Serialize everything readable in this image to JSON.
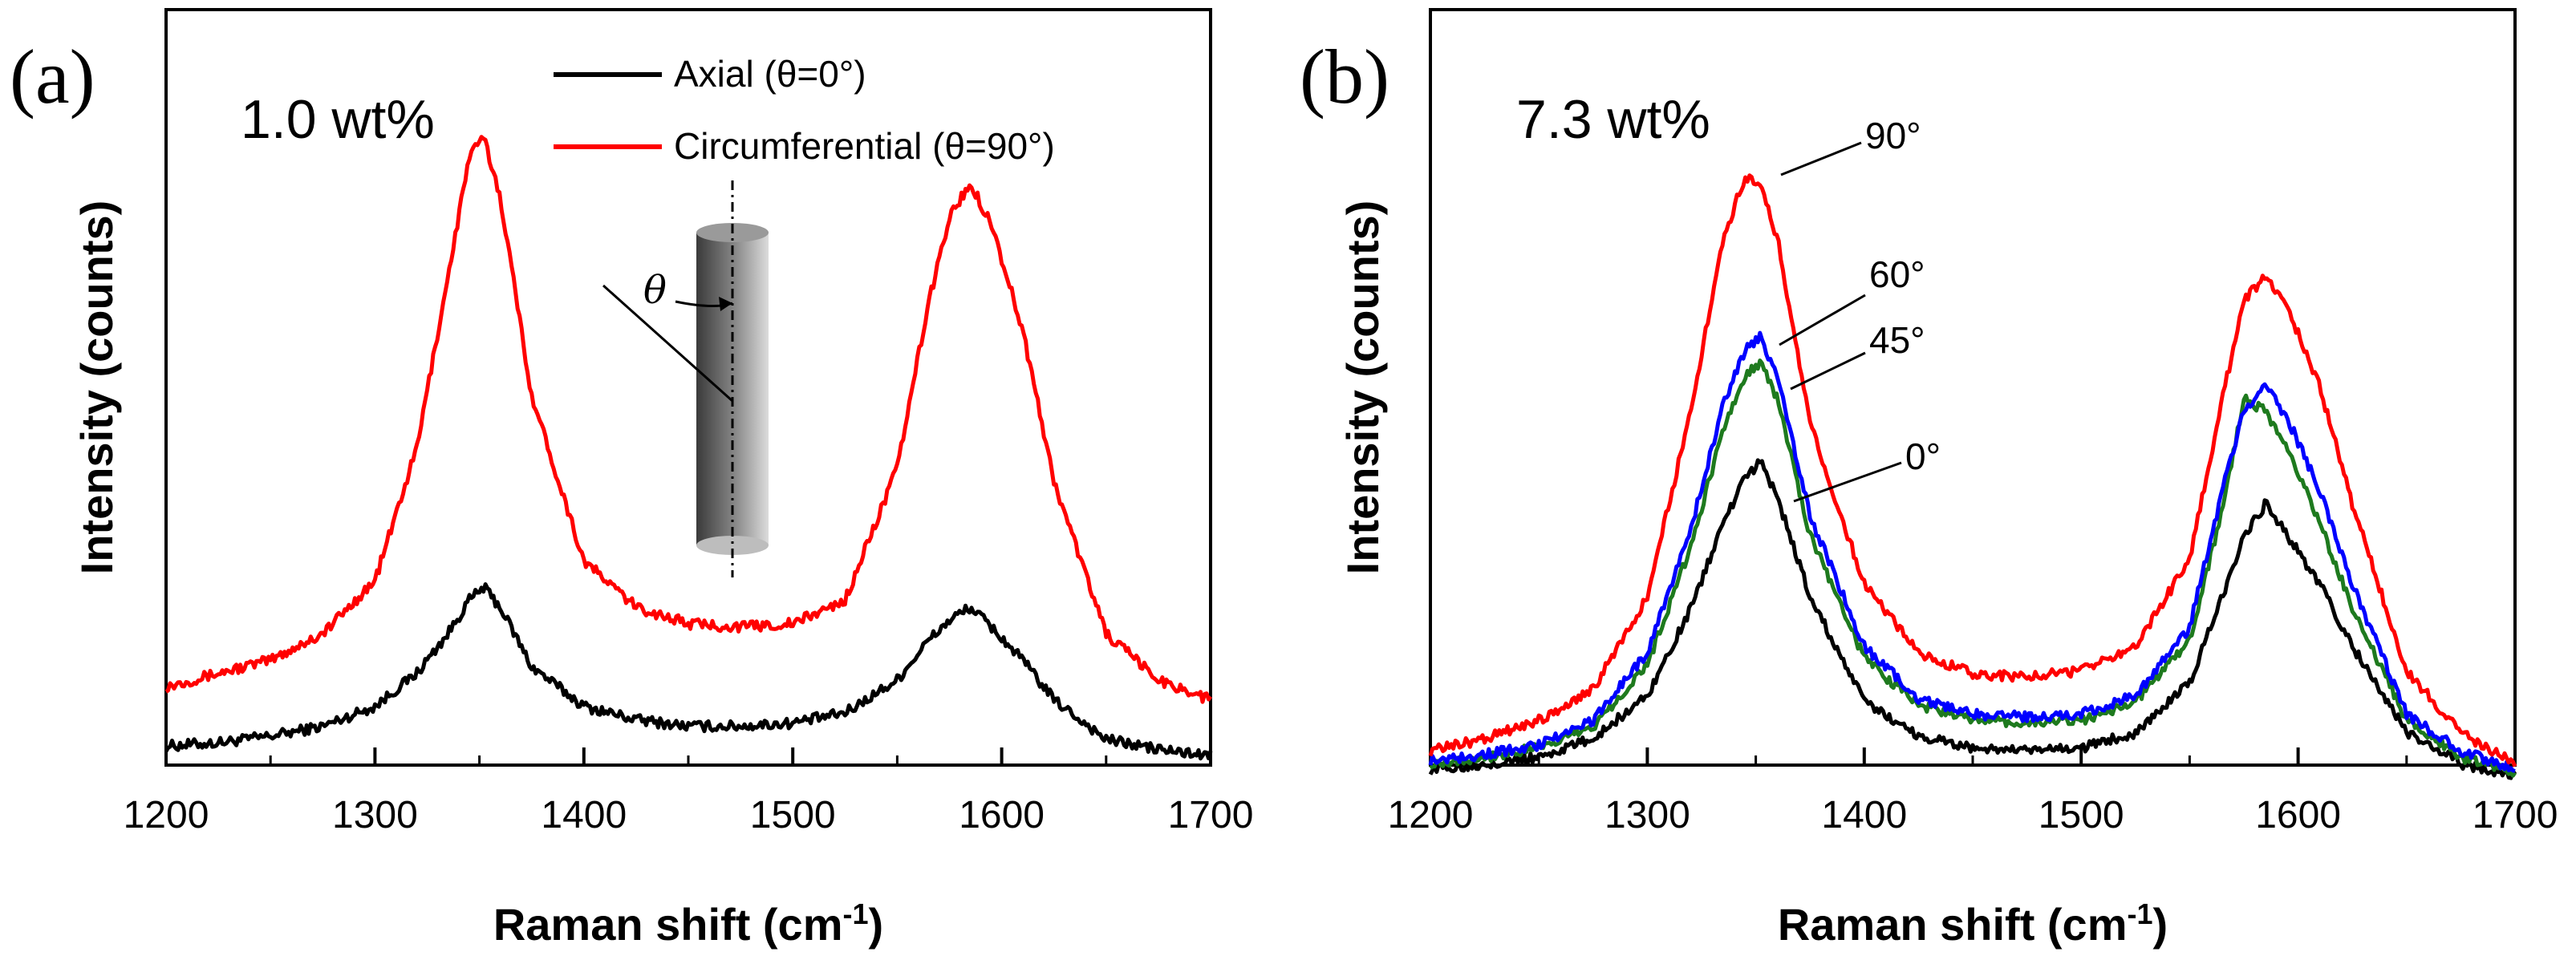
{
  "chart_data": [
    {
      "type": "line",
      "panel_label": "(a)",
      "annotation": "1.0 wt%",
      "xlabel": "Raman shift (cm-1)",
      "xlabel_main": "Raman shift (cm",
      "xlabel_sup": "-1",
      "xlabel_close": ")",
      "ylabel": "Intensity (counts)",
      "xlim": [
        1200,
        1700
      ],
      "ylim": [
        0,
        100
      ],
      "xticks": [
        1200,
        1300,
        1400,
        1500,
        1600,
        1700
      ],
      "legend_position": "top-center",
      "inset_label": "θ",
      "x": [
        1200,
        1225,
        1250,
        1275,
        1300,
        1320,
        1335,
        1345,
        1352,
        1360,
        1375,
        1400,
        1425,
        1450,
        1475,
        1500,
        1525,
        1550,
        1565,
        1575,
        1585,
        1595,
        1610,
        1625,
        1650,
        1675,
        1700
      ],
      "series": [
        {
          "name": "Axial (θ=0°)",
          "legend_main": "Axial (",
          "legend_angle": "0°",
          "color": "#000000",
          "values": [
            3,
            3.5,
            4.5,
            6,
            9,
            14,
            20,
            25,
            27,
            24,
            15,
            9,
            7,
            6,
            6,
            6.5,
            8,
            13,
            19,
            22,
            24,
            21,
            16,
            10,
            4,
            2.5,
            1.5
          ]
        },
        {
          "name": "Circumferential (θ=90°)",
          "legend_main": "Circumferential (",
          "legend_angle": "90°",
          "color": "#ff0000",
          "values": [
            12,
            14,
            16,
            20,
            28,
            48,
            74,
            92,
            95,
            86,
            56,
            31,
            24,
            21.5,
            21,
            21.5,
            25,
            45,
            70,
            83,
            88,
            82,
            66,
            43,
            20,
            13,
            10
          ]
        }
      ]
    },
    {
      "type": "line",
      "panel_label": "(b)",
      "annotation": "7.3 wt%",
      "xlabel": "Raman shift (cm-1)",
      "xlabel_main": "Raman shift (cm",
      "xlabel_sup": "-1",
      "xlabel_close": ")",
      "ylabel": "Intensity (counts)",
      "xlim": [
        1200,
        1700
      ],
      "ylim": [
        0,
        100
      ],
      "xticks": [
        1200,
        1300,
        1400,
        1500,
        1600,
        1700
      ],
      "x": [
        1200,
        1225,
        1250,
        1275,
        1300,
        1320,
        1335,
        1345,
        1352,
        1360,
        1375,
        1400,
        1425,
        1450,
        1475,
        1500,
        1525,
        1550,
        1565,
        1575,
        1585,
        1595,
        1610,
        1625,
        1650,
        1675,
        1700
      ],
      "series": [
        {
          "name": "0°",
          "color": "#000000",
          "values": [
            2,
            3,
            4,
            7,
            14,
            28,
            42,
            49,
            52,
            46,
            30,
            13,
            7.5,
            5.5,
            5,
            5.5,
            8,
            16,
            30,
            40,
            45,
            40,
            32,
            22,
            8,
            3,
            1
          ]
        },
        {
          "name": "45°",
          "color": "#1e7a1e",
          "values": [
            3,
            4,
            5.5,
            9,
            19,
            38,
            57,
            66,
            68,
            62,
            40,
            20,
            12.5,
            10,
            9.5,
            10,
            13,
            23,
            44,
            62,
            60,
            54,
            42,
            28,
            10,
            4,
            1.5
          ]
        },
        {
          "name": "60°",
          "color": "#0000ff",
          "values": [
            3.5,
            4.5,
            6,
            10,
            21,
            41,
            61,
            70,
            72,
            66,
            43,
            22,
            13.5,
            11,
            10.5,
            11,
            14,
            25,
            47,
            60,
            64,
            59,
            47,
            32,
            11,
            5,
            2
          ]
        },
        {
          "name": "90°",
          "color": "#ff0000",
          "values": [
            5,
            7,
            10,
            15,
            30,
            60,
            88,
            98,
            97,
            88,
            58,
            32,
            21,
            17.5,
            17,
            18,
            22,
            36,
            62,
            78,
            82,
            77,
            64,
            45,
            18,
            8,
            3
          ]
        }
      ],
      "angle_labels": [
        "90°",
        "60°",
        "45°",
        "0°"
      ]
    }
  ]
}
